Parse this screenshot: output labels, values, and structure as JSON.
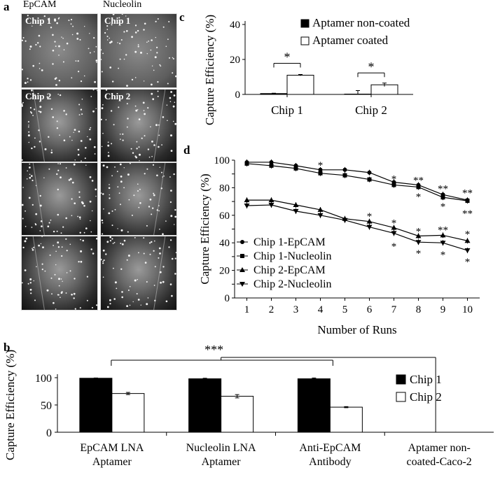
{
  "panel_a": {
    "label": "a",
    "columns": [
      "EpCAM",
      "Nucleolin"
    ],
    "chip_labels": [
      "Chip 1",
      "Chip 2"
    ]
  },
  "panel_b": {
    "label": "b"
  },
  "panel_c": {
    "label": "c"
  },
  "panel_d": {
    "label": "d"
  },
  "chart_data": [
    {
      "id": "c",
      "type": "bar",
      "title": "",
      "xlabel": "",
      "ylabel": "Capture Efficiency (%)",
      "ylim": [
        0,
        40
      ],
      "yticks": [
        0,
        20,
        40
      ],
      "categories": [
        "Chip 1",
        "Chip 2"
      ],
      "series": [
        {
          "name": "Aptamer non-coated",
          "values": [
            0.5,
            0.2
          ],
          "errors": [
            0.2,
            2
          ],
          "color": "#000000"
        },
        {
          "name": "Aptamer coated",
          "values": [
            11,
            5.5
          ],
          "errors": [
            0.4,
            1
          ],
          "color": "#ffffff"
        }
      ],
      "significance": [
        "*",
        "*"
      ],
      "legend": "top"
    },
    {
      "id": "d",
      "type": "line",
      "title": "",
      "xlabel": "Number of Runs",
      "ylabel": "Capture Efficiency (%)",
      "x": [
        1,
        2,
        3,
        4,
        5,
        6,
        7,
        8,
        9,
        10
      ],
      "xlim": [
        0.5,
        10.5
      ],
      "ylim": [
        0,
        100
      ],
      "yticks": [
        0,
        10,
        20,
        30,
        40,
        50,
        60,
        70,
        80,
        90,
        100
      ],
      "series": [
        {
          "name": "Chip 1-EpCAM",
          "marker": "circle",
          "values": [
            98.5,
            98.5,
            96,
            93,
            93,
            91,
            84,
            82,
            75,
            71
          ]
        },
        {
          "name": "Chip 1-Nucleolin",
          "marker": "square",
          "values": [
            97.5,
            96,
            94,
            90.5,
            89,
            86,
            82,
            80.5,
            73,
            70.5
          ]
        },
        {
          "name": "Chip 2-EpCAM",
          "marker": "triangle",
          "values": [
            71,
            71,
            67.5,
            64,
            57.5,
            55.5,
            51,
            45,
            45.5,
            41.5
          ]
        },
        {
          "name": "Chip 2-Nucleolin",
          "marker": "triangle-down",
          "values": [
            67,
            67.5,
            63,
            60,
            56.5,
            51.5,
            47,
            40.5,
            40,
            34.5
          ]
        }
      ],
      "annotations": [
        {
          "x": 4,
          "y": 97,
          "text": "*"
        },
        {
          "x": 7,
          "y": 87,
          "text": "*"
        },
        {
          "x": 8,
          "y": 86,
          "text": "**"
        },
        {
          "x": 9,
          "y": 80,
          "text": "**"
        },
        {
          "x": 10,
          "y": 77,
          "text": "**"
        },
        {
          "x": 8,
          "y": 74,
          "text": "*"
        },
        {
          "x": 9,
          "y": 67,
          "text": "*"
        },
        {
          "x": 10,
          "y": 62,
          "text": "**"
        },
        {
          "x": 6,
          "y": 60,
          "text": "*"
        },
        {
          "x": 7,
          "y": 55,
          "text": "*"
        },
        {
          "x": 8,
          "y": 49,
          "text": "*"
        },
        {
          "x": 9,
          "y": 50,
          "text": "**"
        },
        {
          "x": 10,
          "y": 47,
          "text": "*"
        },
        {
          "x": 7,
          "y": 38,
          "text": "*"
        },
        {
          "x": 8,
          "y": 33,
          "text": "*"
        },
        {
          "x": 9,
          "y": 32,
          "text": "*"
        },
        {
          "x": 10,
          "y": 27,
          "text": "*"
        }
      ],
      "legend": "bottom-left"
    },
    {
      "id": "b",
      "type": "bar",
      "title": "",
      "xlabel": "",
      "ylabel": "Capture Efficiency (%)",
      "ylim": [
        0,
        100
      ],
      "yticks": [
        0,
        50,
        100
      ],
      "categories": [
        [
          "EpCAM LNA",
          "Aptamer"
        ],
        [
          "Nucleolin LNA",
          "Aptamer"
        ],
        [
          "Anti-EpCAM",
          "Antibody"
        ],
        [
          "Aptamer non-",
          "coated-Caco-2"
        ]
      ],
      "series": [
        {
          "name": "Chip 1",
          "values": [
            99,
            98,
            98,
            0
          ],
          "errors": [
            0.5,
            1,
            1.5,
            0
          ],
          "color": "#000000"
        },
        {
          "name": "Chip 2",
          "values": [
            71,
            66,
            46,
            0
          ],
          "errors": [
            2,
            3,
            1,
            0
          ],
          "color": "#ffffff"
        }
      ],
      "significance": [
        "***"
      ],
      "legend": "right"
    }
  ]
}
